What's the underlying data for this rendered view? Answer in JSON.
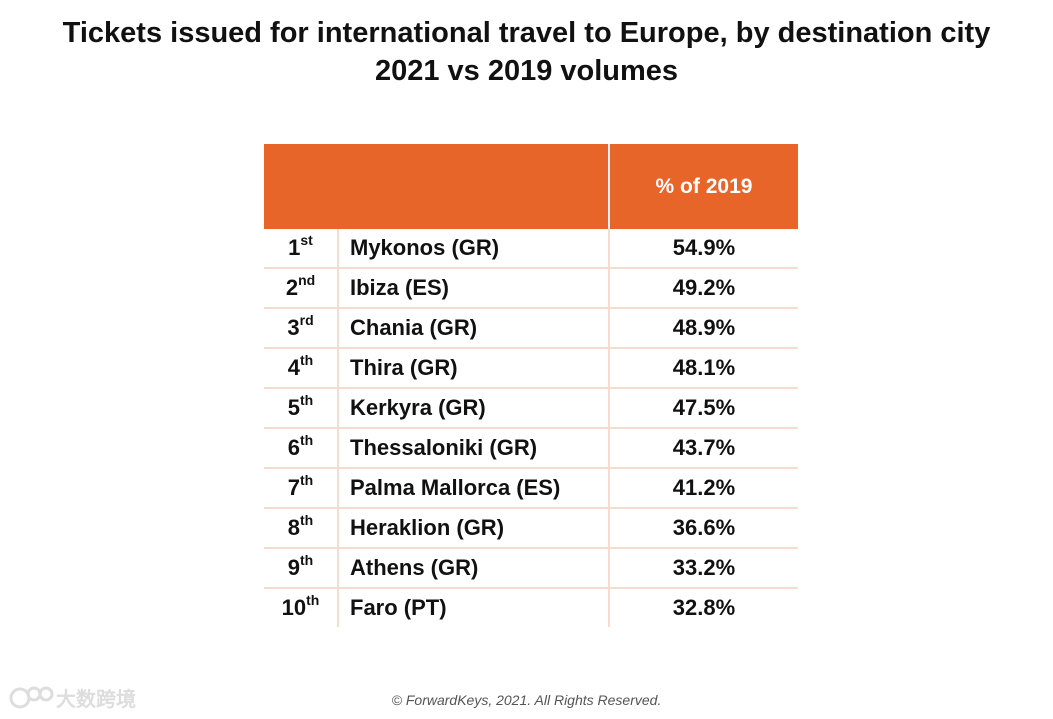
{
  "title": {
    "line1": "Tickets issued for international travel to Europe, by destination city",
    "line2": "2021 vs 2019 volumes"
  },
  "table": {
    "header": {
      "col1": "",
      "col2": "% of 2019"
    },
    "accent_color": "#e8652a",
    "rows": [
      {
        "rank": "1",
        "suffix": "st",
        "city": "Mykonos (GR)",
        "pct": "54.9%"
      },
      {
        "rank": "2",
        "suffix": "nd",
        "city": "Ibiza (ES)",
        "pct": "49.2%"
      },
      {
        "rank": "3",
        "suffix": "rd",
        "city": "Chania (GR)",
        "pct": "48.9%"
      },
      {
        "rank": "4",
        "suffix": "th",
        "city": "Thira (GR)",
        "pct": "48.1%"
      },
      {
        "rank": "5",
        "suffix": "th",
        "city": "Kerkyra (GR)",
        "pct": "47.5%"
      },
      {
        "rank": "6",
        "suffix": "th",
        "city": "Thessaloniki (GR)",
        "pct": "43.7%"
      },
      {
        "rank": "7",
        "suffix": "th",
        "city": "Palma Mallorca (ES)",
        "pct": "41.2%"
      },
      {
        "rank": "8",
        "suffix": "th",
        "city": "Heraklion (GR)",
        "pct": "36.6%"
      },
      {
        "rank": "9",
        "suffix": "th",
        "city": "Athens (GR)",
        "pct": "33.2%"
      },
      {
        "rank": "10",
        "suffix": "th",
        "city": "Faro (PT)",
        "pct": "32.8%"
      }
    ]
  },
  "chart_data": {
    "type": "table",
    "title": "Tickets issued for international travel to Europe, by destination city",
    "subtitle": "2021 vs 2019 volumes",
    "columns": [
      "",
      "",
      "% of 2019"
    ],
    "categories": [
      "Mykonos (GR)",
      "Ibiza (ES)",
      "Chania (GR)",
      "Thira (GR)",
      "Kerkyra (GR)",
      "Thessaloniki (GR)",
      "Palma Mallorca (ES)",
      "Heraklion (GR)",
      "Athens (GR)",
      "Faro (PT)"
    ],
    "values": [
      54.9,
      49.2,
      48.9,
      48.1,
      47.5,
      43.7,
      41.2,
      36.6,
      33.2,
      32.8
    ]
  },
  "footer": {
    "copyright": "© ForwardKeys, 2021. All Rights Reserved."
  },
  "watermark": {
    "text": "大数跨境",
    "icon": "logo-icon"
  }
}
